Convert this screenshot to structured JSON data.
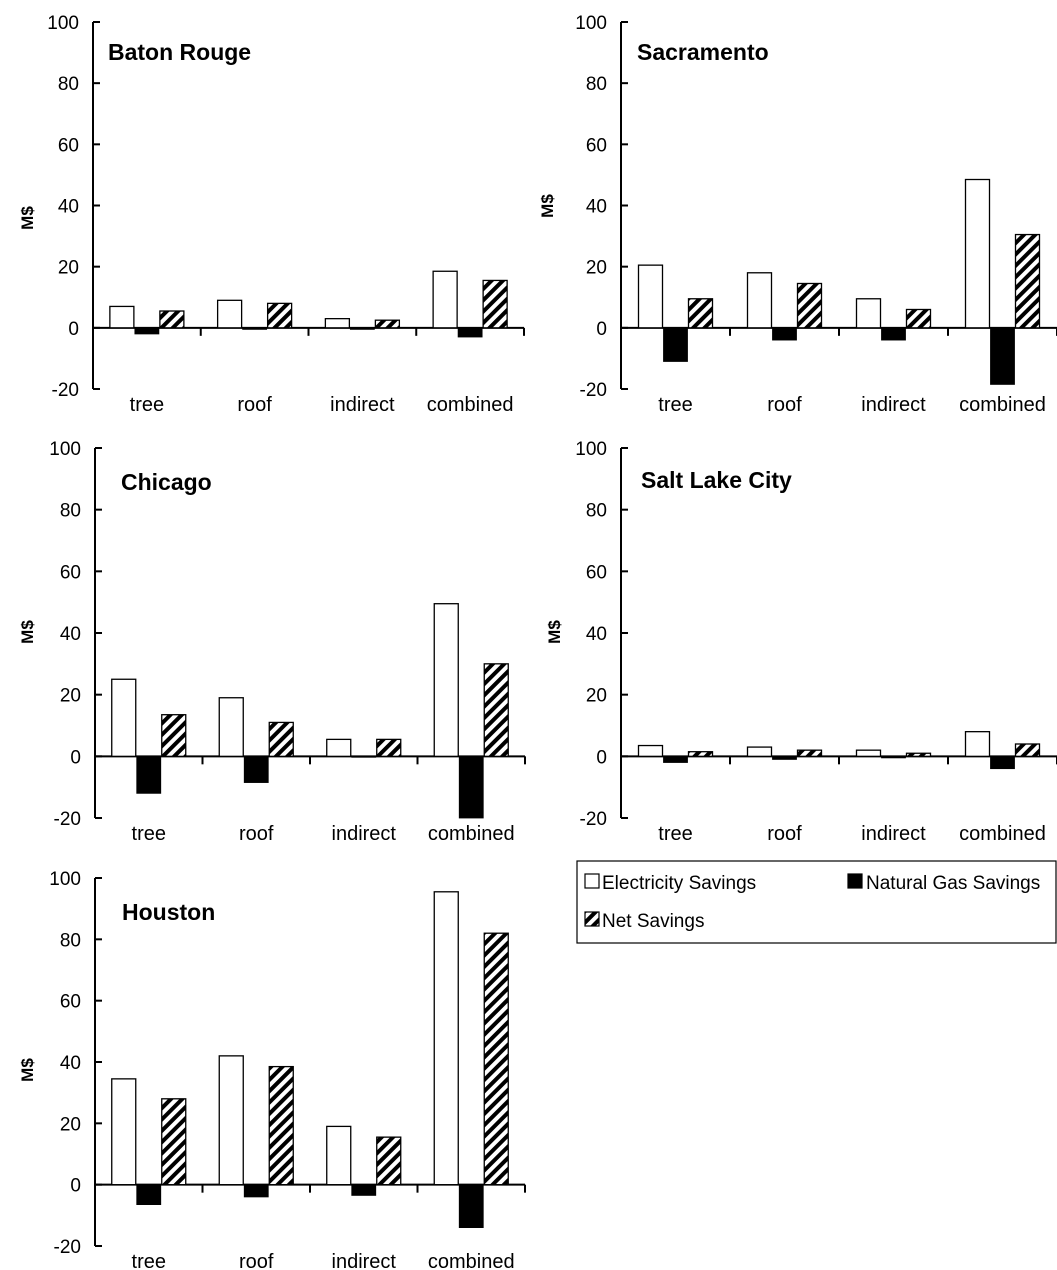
{
  "chart_data": [
    {
      "type": "bar",
      "title": "Baton Rouge",
      "ylabel": "M$",
      "ylim": [
        -20,
        100
      ],
      "yticks": [
        "100",
        "80",
        "60",
        "40",
        "20",
        "0",
        "-20"
      ],
      "categories": [
        "tree",
        "roof",
        "indirect",
        "combined"
      ],
      "series": [
        {
          "name": "Electricity Savings",
          "values": [
            7,
            9,
            3,
            18.5
          ]
        },
        {
          "name": "Natural Gas Savings",
          "values": [
            -2,
            -0.5,
            -0.5,
            -3
          ]
        },
        {
          "name": "Net Savings",
          "values": [
            5.5,
            8,
            2.5,
            15.5
          ]
        }
      ]
    },
    {
      "type": "bar",
      "title": "Sacramento",
      "ylabel": "M$",
      "ylim": [
        -20,
        100
      ],
      "yticks": [
        "100",
        "80",
        "60",
        "40",
        "20",
        "0",
        "-20"
      ],
      "categories": [
        "tree",
        "roof",
        "indirect",
        "combined"
      ],
      "series": [
        {
          "name": "Electricity Savings",
          "values": [
            20.5,
            18,
            9.5,
            48.5
          ]
        },
        {
          "name": "Natural Gas Savings",
          "values": [
            -11,
            -4,
            -4,
            -18.5
          ]
        },
        {
          "name": "Net Savings",
          "values": [
            9.5,
            14.5,
            6,
            30.5
          ]
        }
      ]
    },
    {
      "type": "bar",
      "title": "Chicago",
      "ylabel": "M$",
      "ylim": [
        -20,
        100
      ],
      "yticks": [
        "100",
        "80",
        "60",
        "40",
        "20",
        "0",
        "-20"
      ],
      "categories": [
        "tree",
        "roof",
        "indirect",
        "combined"
      ],
      "series": [
        {
          "name": "Electricity Savings",
          "values": [
            25,
            19,
            5.5,
            49.5
          ]
        },
        {
          "name": "Natural Gas Savings",
          "values": [
            -12,
            -8.5,
            -0.3,
            -20
          ]
        },
        {
          "name": "Net Savings",
          "values": [
            13.5,
            11,
            5.5,
            30
          ]
        }
      ]
    },
    {
      "type": "bar",
      "title": "Salt Lake City",
      "ylabel": "M$",
      "ylim": [
        -20,
        100
      ],
      "yticks": [
        "100",
        "80",
        "60",
        "40",
        "20",
        "0",
        "-20"
      ],
      "categories": [
        "tree",
        "roof",
        "indirect",
        "combined"
      ],
      "series": [
        {
          "name": "Electricity Savings",
          "values": [
            3.5,
            3,
            2,
            8
          ]
        },
        {
          "name": "Natural Gas Savings",
          "values": [
            -2,
            -1,
            -0.5,
            -4
          ]
        },
        {
          "name": "Net Savings",
          "values": [
            1.5,
            2,
            1,
            4
          ]
        }
      ]
    },
    {
      "type": "bar",
      "title": "Houston",
      "ylabel": "M$",
      "ylim": [
        -20,
        100
      ],
      "yticks": [
        "100",
        "80",
        "60",
        "40",
        "20",
        "0",
        "-20"
      ],
      "categories": [
        "tree",
        "roof",
        "indirect",
        "combined"
      ],
      "series": [
        {
          "name": "Electricity Savings",
          "values": [
            34.5,
            42,
            19,
            95.5
          ]
        },
        {
          "name": "Natural Gas Savings",
          "values": [
            -6.5,
            -4,
            -3.5,
            -14
          ]
        },
        {
          "name": "Net Savings",
          "values": [
            28,
            38.5,
            15.5,
            82
          ]
        }
      ]
    }
  ],
  "legend": {
    "items": [
      {
        "label": "Electricity Savings",
        "style": "outline"
      },
      {
        "label": "Natural Gas Savings",
        "style": "solid"
      },
      {
        "label": "Net Savings",
        "style": "hatched"
      }
    ]
  },
  "colors": {
    "outline_fill": "#ffffff",
    "solid_fill": "#000000",
    "stroke": "#000000"
  }
}
